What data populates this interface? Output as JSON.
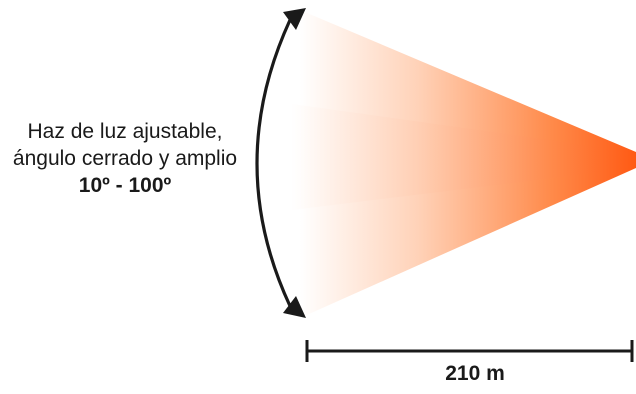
{
  "caption": {
    "line1": "Haz de luz ajustable,",
    "line2": "ángulo cerrado y amplio",
    "range": "10º - 100º"
  },
  "distance_label": "210 m",
  "colors": {
    "beam_source": "#ff5a14",
    "beam_fade": "#ffffff",
    "line": "#1a1a1a",
    "text": "#1a1a1a"
  },
  "icons": {
    "angle_arrow": "curved-double-arrow-icon",
    "distance_bar": "dimension-bar-icon"
  }
}
